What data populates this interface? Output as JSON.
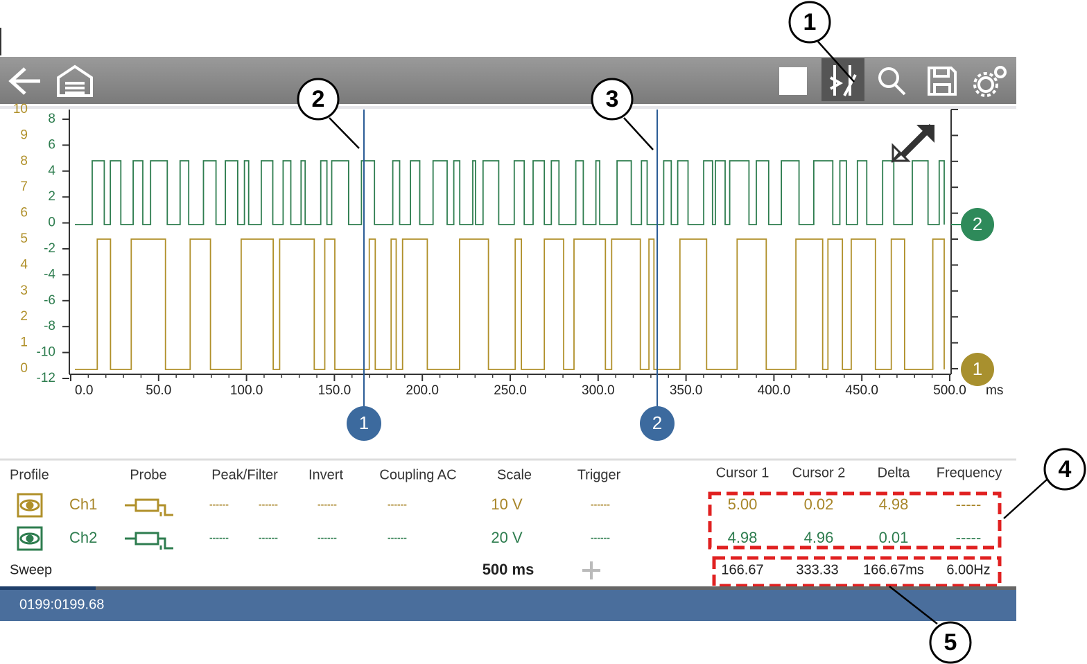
{
  "callouts": [
    "1",
    "2",
    "3",
    "4",
    "5"
  ],
  "plot": {
    "ch1_axis": {
      "ticks": [
        0,
        1,
        2,
        3,
        4,
        5,
        6,
        7,
        8,
        9,
        10
      ]
    },
    "ch2_axis": {
      "ticks": [
        -12,
        -10,
        -8,
        -6,
        -4,
        -2,
        0,
        2,
        4,
        6,
        8
      ]
    },
    "x_axis": {
      "ticks": [
        {
          "value": 0,
          "label": "0.0"
        },
        {
          "value": 50,
          "label": "50.0"
        },
        {
          "value": 100,
          "label": "100.0"
        },
        {
          "value": 150,
          "label": "150.0"
        },
        {
          "value": 200,
          "label": "200.0"
        },
        {
          "value": 250,
          "label": "250.0"
        },
        {
          "value": 300,
          "label": "300.0"
        },
        {
          "value": 350,
          "label": "350.0"
        },
        {
          "value": 400,
          "label": "400.0"
        },
        {
          "value": 450,
          "label": "450.0"
        },
        {
          "value": 500,
          "label": "500.0"
        }
      ],
      "unit": "ms"
    },
    "channel_markers": [
      "2",
      "1"
    ],
    "cursor_markers": [
      "1",
      "2"
    ]
  },
  "table": {
    "headers": [
      "Profile",
      "Probe",
      "Peak/Filter",
      "Invert",
      "Coupling AC",
      "Scale",
      "Trigger",
      "Cursor 1",
      "Cursor 2",
      "Delta",
      "Frequency"
    ],
    "rows": [
      [
        "Ch1",
        "------",
        "------",
        "------",
        "------",
        "10 V",
        "------",
        "5.00",
        "0.02",
        "4.98",
        "-----"
      ],
      [
        "Ch2",
        "------",
        "------",
        "------",
        "------",
        "20 V",
        "------",
        "4.98",
        "4.96",
        "0.01",
        "-----"
      ]
    ],
    "sweep": [
      "Sweep",
      "500 ms",
      "166.67",
      "333.33",
      "166.67ms",
      "6.00Hz"
    ]
  },
  "status": "0199:0199.68"
}
